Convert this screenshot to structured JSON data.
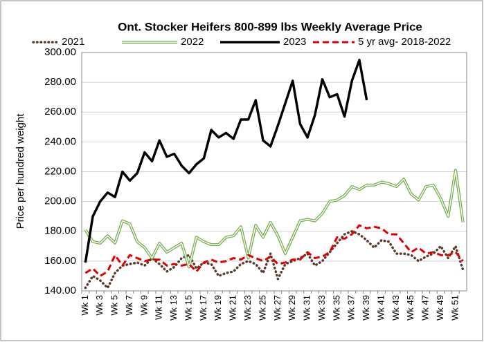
{
  "chart_data": {
    "type": "line",
    "title": "Ont. Stocker Heifers 800-899 lbs Weekly Average Price",
    "y_label": "Price per hundred weight",
    "categories": [
      "Wk 1",
      null,
      "Wk 3",
      null,
      "Wk 5",
      null,
      "Wk 7",
      null,
      "Wk 9",
      null,
      "Wk 11",
      null,
      "Wk 13",
      null,
      "Wk 15",
      null,
      "Wk 17",
      null,
      "Wk 19",
      null,
      "Wk 21",
      null,
      "Wk 23",
      null,
      "Wk 25",
      null,
      "Wk 27",
      null,
      "Wk 29",
      null,
      "Wk 31",
      null,
      "Wk 33",
      null,
      "Wk 35",
      null,
      "Wk 37",
      null,
      "Wk 39",
      null,
      "Wk 41",
      null,
      "Wk 43",
      null,
      "Wk 45",
      null,
      "Wk 47",
      null,
      "Wk 49",
      null,
      "Wk 51",
      null
    ],
    "series": [
      {
        "name": "2021",
        "color": "#5a3a2a",
        "linestyle": "dotted",
        "values": [
          142,
          150,
          147,
          142,
          152,
          157,
          158,
          159,
          157,
          162,
          158,
          153,
          156,
          162,
          164,
          155,
          159,
          158,
          150,
          152,
          153,
          158,
          160,
          158,
          152,
          165,
          148,
          158,
          160,
          162,
          165,
          157,
          160,
          166,
          172,
          178,
          180,
          178,
          174,
          169,
          174,
          173,
          165,
          165,
          164,
          160,
          163,
          165,
          170,
          162,
          170,
          154
        ]
      },
      {
        "name": "2022",
        "color": "#70ad47",
        "linestyle": "double",
        "values": [
          181,
          173,
          172,
          177,
          172,
          187,
          185,
          173,
          169,
          162,
          172,
          166,
          169,
          172,
          156,
          176,
          173,
          171,
          171,
          176,
          177,
          183,
          162,
          184,
          176,
          186,
          177,
          165,
          176,
          187,
          188,
          187,
          192,
          200,
          201,
          204,
          210,
          208,
          211,
          211,
          213,
          212,
          210,
          215,
          205,
          201,
          210,
          211,
          202,
          190,
          221,
          186
        ]
      },
      {
        "name": "2023",
        "color": "#000000",
        "linestyle": "solid",
        "values": [
          159,
          190,
          200,
          206,
          203,
          220,
          214,
          219,
          233,
          227,
          241,
          230,
          232,
          224,
          219,
          225,
          229,
          248,
          243,
          246,
          242,
          255,
          255,
          268,
          241,
          237,
          251,
          266,
          281,
          252,
          243,
          258,
          282,
          270,
          272,
          257,
          281,
          295,
          268,
          null,
          null,
          null,
          null,
          null,
          null,
          null,
          null,
          null,
          null,
          null,
          null,
          null
        ]
      },
      {
        "name": "5 yr avg- 2018-2022",
        "color": "#e00000",
        "linestyle": "dashed",
        "values": [
          152,
          155,
          150,
          153,
          164,
          157,
          164,
          162,
          160,
          161,
          161,
          157,
          158,
          157,
          158,
          153,
          159,
          161,
          159,
          160,
          162,
          161,
          164,
          162,
          160,
          163,
          158,
          159,
          161,
          161,
          166,
          162,
          163,
          166,
          176,
          175,
          178,
          184,
          182,
          183,
          182,
          178,
          178,
          172,
          166,
          169,
          165,
          166,
          164,
          164,
          166,
          160
        ]
      }
    ],
    "ylim": [
      140,
      300
    ],
    "yticks": [
      {
        "value": 140,
        "label": "140.00"
      },
      {
        "value": 160,
        "label": "160.00"
      },
      {
        "value": 180,
        "label": "180.00"
      },
      {
        "value": 200,
        "label": "200.00"
      },
      {
        "value": 220,
        "label": "220.00"
      },
      {
        "value": 240,
        "label": "240.00"
      },
      {
        "value": 260,
        "label": "260.00"
      },
      {
        "value": 280,
        "label": "280.00"
      },
      {
        "value": 300,
        "label": "300.00"
      }
    ],
    "grid": true,
    "legend": "top"
  }
}
